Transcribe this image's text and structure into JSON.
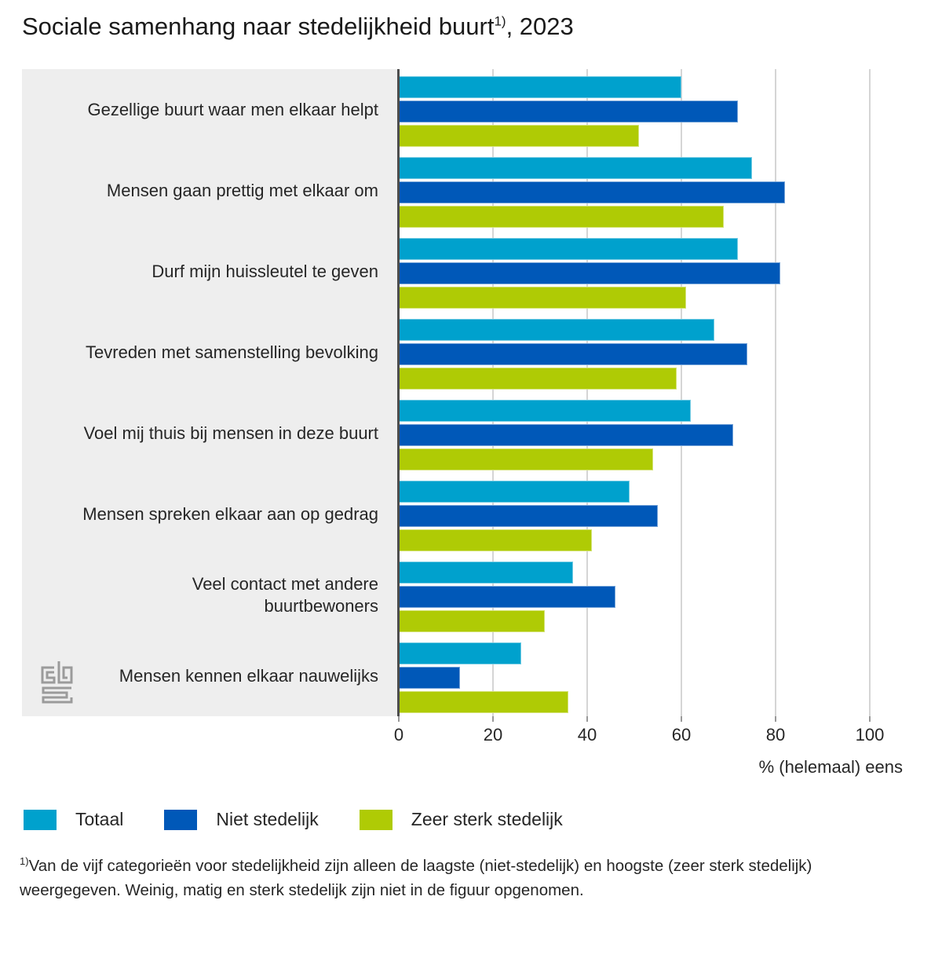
{
  "title": {
    "main": "Sociale samenhang naar stedelijkheid buurt",
    "footnote_marker": "1)",
    "suffix": ", 2023"
  },
  "chart_data": {
    "type": "bar",
    "orientation": "horizontal",
    "categories": [
      "Gezellige buurt waar men elkaar helpt",
      "Mensen gaan prettig met elkaar om",
      "Durf mijn huissleutel te geven",
      "Tevreden met samenstelling bevolking",
      "Voel mij thuis bij mensen in deze buurt",
      "Mensen spreken elkaar aan op gedrag",
      "Veel contact met andere\nbuurtbewoners",
      "Mensen kennen elkaar nauwelijks"
    ],
    "series": [
      {
        "name": "Totaal",
        "color": "#00a1cd",
        "values": [
          60,
          75,
          72,
          67,
          62,
          49,
          37,
          26
        ]
      },
      {
        "name": "Niet stedelijk",
        "color": "#0058b8",
        "values": [
          72,
          82,
          81,
          74,
          71,
          55,
          46,
          13
        ]
      },
      {
        "name": "Zeer sterk stedelijk",
        "color": "#afcb05",
        "values": [
          51,
          69,
          61,
          59,
          54,
          41,
          31,
          36
        ]
      }
    ],
    "xlabel": "% (helemaal) eens",
    "xticks": [
      0,
      20,
      40,
      60,
      80,
      100
    ],
    "xlim": [
      0,
      100
    ],
    "grid": true,
    "legend_position": "bottom"
  },
  "footnote": {
    "marker": "1)",
    "text": "Van de vijf categorieën voor stedelijkheid zijn alleen de laagste (niet-stedelijk) en hoogste (zeer sterk stedelijk) weergegeven. Weinig, matig en sterk stedelijk zijn niet in de figuur opgenomen."
  },
  "branding": {
    "logo": "CBS"
  },
  "colors": {
    "totaal": "#00a1cd",
    "niet_stedelijk": "#0058b8",
    "zeer_sterk_stedelijk": "#afcb05",
    "panel_background": "#eeeeee",
    "gridline": "#d5d5d5",
    "axis_line": "#4d4d4d"
  }
}
